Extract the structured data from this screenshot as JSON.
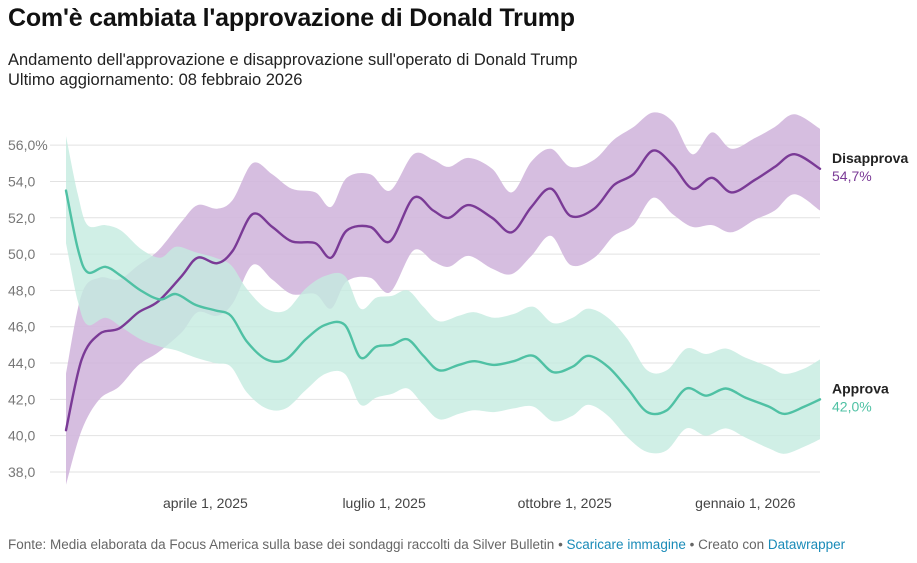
{
  "header": {
    "title": "Com'è cambiata l'approvazione di Donald Trump",
    "subtitle": "Andamento dell'approvazione e disapprovazione sull'operato di Donald Trump",
    "updated": "Ultimo aggiornamento: 08 febbraio 2026"
  },
  "footer": {
    "source": "Fonte: Media elaborata da Focus America sulla base dei sondaggi raccolti da Silver Bulletin",
    "sep1": " • ",
    "download": "Scaricare immagine",
    "sep2": " • Creato con ",
    "tool": "Datawrapper"
  },
  "colors": {
    "disapprove": "#7a3a96",
    "disapprove_band": "#d2b7dd",
    "approve": "#4fc1a4",
    "approve_band": "#c4ebe0",
    "grid": "#e2e2e2",
    "link": "#1a8bb8"
  },
  "chart_data": {
    "type": "line",
    "title": "Com'è cambiata l'approvazione di Donald Trump",
    "x_axis": {
      "type": "date",
      "range": [
        "2025-01-20",
        "2026-02-08"
      ],
      "ticks": [
        {
          "date": "2025-04-01",
          "label": "aprile 1, 2025"
        },
        {
          "date": "2025-07-01",
          "label": "luglio 1, 2025"
        },
        {
          "date": "2025-10-01",
          "label": "ottobre 1, 2025"
        },
        {
          "date": "2026-01-01",
          "label": "gennaio 1, 2026"
        }
      ]
    },
    "y_axis": {
      "range": [
        38,
        57
      ],
      "ticks": [
        {
          "value": 38,
          "label": "38,0"
        },
        {
          "value": 40,
          "label": "40,0"
        },
        {
          "value": 42,
          "label": "42,0"
        },
        {
          "value": 44,
          "label": "44,0"
        },
        {
          "value": 46,
          "label": "46,0"
        },
        {
          "value": 48,
          "label": "48,0"
        },
        {
          "value": 50,
          "label": "50,0"
        },
        {
          "value": 52,
          "label": "52,0"
        },
        {
          "value": 54,
          "label": "54,0"
        },
        {
          "value": 56,
          "label": "56,0%"
        }
      ]
    },
    "grid": true,
    "series": [
      {
        "name": "Disapprova",
        "end_label": "54,7%",
        "points": [
          {
            "date": "2025-01-20",
            "value": 40.3,
            "low": 37.3,
            "high": 43.4
          },
          {
            "date": "2025-01-28",
            "value": 44.2,
            "low": 40.3,
            "high": 47.8
          },
          {
            "date": "2025-02-06",
            "value": 45.6,
            "low": 42.0,
            "high": 48.7
          },
          {
            "date": "2025-02-16",
            "value": 45.9,
            "low": 42.7,
            "high": 48.6
          },
          {
            "date": "2025-02-26",
            "value": 46.8,
            "low": 43.9,
            "high": 49.4
          },
          {
            "date": "2025-03-08",
            "value": 47.4,
            "low": 44.6,
            "high": 50.2
          },
          {
            "date": "2025-03-20",
            "value": 48.8,
            "low": 45.7,
            "high": 51.8
          },
          {
            "date": "2025-03-28",
            "value": 49.8,
            "low": 46.8,
            "high": 52.7
          },
          {
            "date": "2025-04-07",
            "value": 49.5,
            "low": 46.6,
            "high": 52.5
          },
          {
            "date": "2025-04-15",
            "value": 50.2,
            "low": 47.3,
            "high": 53.0
          },
          {
            "date": "2025-04-25",
            "value": 52.2,
            "low": 49.4,
            "high": 55.0
          },
          {
            "date": "2025-05-05",
            "value": 51.5,
            "low": 48.6,
            "high": 54.4
          },
          {
            "date": "2025-05-15",
            "value": 50.7,
            "low": 47.8,
            "high": 53.6
          },
          {
            "date": "2025-05-27",
            "value": 50.6,
            "low": 47.8,
            "high": 53.4
          },
          {
            "date": "2025-06-04",
            "value": 49.8,
            "low": 47.0,
            "high": 52.6
          },
          {
            "date": "2025-06-12",
            "value": 51.3,
            "low": 48.5,
            "high": 54.2
          },
          {
            "date": "2025-06-24",
            "value": 51.5,
            "low": 48.7,
            "high": 54.4
          },
          {
            "date": "2025-07-04",
            "value": 50.7,
            "low": 47.9,
            "high": 53.5
          },
          {
            "date": "2025-07-16",
            "value": 53.1,
            "low": 50.2,
            "high": 55.5
          },
          {
            "date": "2025-07-26",
            "value": 52.4,
            "low": 49.6,
            "high": 55.2
          },
          {
            "date": "2025-08-03",
            "value": 52.0,
            "low": 49.3,
            "high": 54.8
          },
          {
            "date": "2025-08-13",
            "value": 52.7,
            "low": 49.9,
            "high": 55.3
          },
          {
            "date": "2025-08-25",
            "value": 52.0,
            "low": 49.2,
            "high": 54.7
          },
          {
            "date": "2025-09-04",
            "value": 51.2,
            "low": 48.9,
            "high": 53.4
          },
          {
            "date": "2025-09-14",
            "value": 52.6,
            "low": 49.9,
            "high": 55.1
          },
          {
            "date": "2025-09-24",
            "value": 53.6,
            "low": 51.0,
            "high": 55.8
          },
          {
            "date": "2025-10-04",
            "value": 52.1,
            "low": 49.4,
            "high": 54.8
          },
          {
            "date": "2025-10-16",
            "value": 52.5,
            "low": 49.8,
            "high": 55.2
          },
          {
            "date": "2025-10-26",
            "value": 53.8,
            "low": 51.0,
            "high": 56.3
          },
          {
            "date": "2025-11-05",
            "value": 54.4,
            "low": 51.6,
            "high": 57.0
          },
          {
            "date": "2025-11-15",
            "value": 55.7,
            "low": 53.1,
            "high": 57.8
          },
          {
            "date": "2025-11-25",
            "value": 54.9,
            "low": 52.2,
            "high": 57.3
          },
          {
            "date": "2025-12-05",
            "value": 53.6,
            "low": 51.5,
            "high": 55.5
          },
          {
            "date": "2025-12-15",
            "value": 54.2,
            "low": 51.6,
            "high": 56.7
          },
          {
            "date": "2025-12-25",
            "value": 53.4,
            "low": 51.2,
            "high": 55.8
          },
          {
            "date": "2026-01-06",
            "value": 54.1,
            "low": 51.9,
            "high": 56.4
          },
          {
            "date": "2026-01-16",
            "value": 54.8,
            "low": 52.4,
            "high": 57.0
          },
          {
            "date": "2026-01-26",
            "value": 55.5,
            "low": 53.3,
            "high": 57.7
          },
          {
            "date": "2026-02-08",
            "value": 54.7,
            "low": 52.4,
            "high": 56.9
          }
        ]
      },
      {
        "name": "Approva",
        "end_label": "42,0%",
        "points": [
          {
            "date": "2025-01-20",
            "value": 53.5,
            "low": 50.6,
            "high": 56.5
          },
          {
            "date": "2025-01-26",
            "value": 50.3,
            "low": 47.4,
            "high": 53.3
          },
          {
            "date": "2025-01-31",
            "value": 49.0,
            "low": 46.1,
            "high": 51.6
          },
          {
            "date": "2025-02-09",
            "value": 49.3,
            "low": 46.5,
            "high": 51.6
          },
          {
            "date": "2025-02-17",
            "value": 48.8,
            "low": 46.0,
            "high": 51.3
          },
          {
            "date": "2025-02-27",
            "value": 48.0,
            "low": 45.3,
            "high": 50.3
          },
          {
            "date": "2025-03-09",
            "value": 47.5,
            "low": 44.9,
            "high": 49.8
          },
          {
            "date": "2025-03-17",
            "value": 47.8,
            "low": 44.7,
            "high": 50.4
          },
          {
            "date": "2025-03-27",
            "value": 47.2,
            "low": 44.3,
            "high": 50.1
          },
          {
            "date": "2025-04-06",
            "value": 46.9,
            "low": 44.0,
            "high": 49.8
          },
          {
            "date": "2025-04-14",
            "value": 46.6,
            "low": 43.8,
            "high": 49.4
          },
          {
            "date": "2025-04-22",
            "value": 45.2,
            "low": 42.4,
            "high": 48.1
          },
          {
            "date": "2025-05-02",
            "value": 44.2,
            "low": 41.5,
            "high": 47.0
          },
          {
            "date": "2025-05-12",
            "value": 44.2,
            "low": 41.5,
            "high": 46.9
          },
          {
            "date": "2025-05-22",
            "value": 45.3,
            "low": 42.5,
            "high": 48.1
          },
          {
            "date": "2025-06-01",
            "value": 46.1,
            "low": 43.4,
            "high": 48.8
          },
          {
            "date": "2025-06-11",
            "value": 46.1,
            "low": 43.4,
            "high": 48.8
          },
          {
            "date": "2025-06-19",
            "value": 44.3,
            "low": 41.7,
            "high": 47.0
          },
          {
            "date": "2025-06-27",
            "value": 44.9,
            "low": 42.1,
            "high": 47.6
          },
          {
            "date": "2025-07-05",
            "value": 45.0,
            "low": 42.3,
            "high": 47.7
          },
          {
            "date": "2025-07-13",
            "value": 45.3,
            "low": 42.6,
            "high": 48.0
          },
          {
            "date": "2025-07-21",
            "value": 44.4,
            "low": 41.7,
            "high": 47.1
          },
          {
            "date": "2025-07-29",
            "value": 43.6,
            "low": 40.9,
            "high": 46.3
          },
          {
            "date": "2025-08-08",
            "value": 43.9,
            "low": 41.2,
            "high": 46.6
          },
          {
            "date": "2025-08-16",
            "value": 44.1,
            "low": 41.4,
            "high": 46.8
          },
          {
            "date": "2025-08-26",
            "value": 43.9,
            "low": 41.3,
            "high": 46.5
          },
          {
            "date": "2025-09-05",
            "value": 44.1,
            "low": 41.5,
            "high": 46.7
          },
          {
            "date": "2025-09-15",
            "value": 44.4,
            "low": 41.6,
            "high": 47.1
          },
          {
            "date": "2025-09-25",
            "value": 43.5,
            "low": 40.8,
            "high": 46.2
          },
          {
            "date": "2025-10-05",
            "value": 43.8,
            "low": 41.1,
            "high": 46.5
          },
          {
            "date": "2025-10-13",
            "value": 44.4,
            "low": 41.7,
            "high": 47.0
          },
          {
            "date": "2025-10-23",
            "value": 43.8,
            "low": 41.1,
            "high": 46.5
          },
          {
            "date": "2025-11-02",
            "value": 42.6,
            "low": 39.9,
            "high": 45.3
          },
          {
            "date": "2025-11-12",
            "value": 41.3,
            "low": 39.1,
            "high": 43.6
          },
          {
            "date": "2025-11-22",
            "value": 41.4,
            "low": 39.2,
            "high": 43.6
          },
          {
            "date": "2025-12-02",
            "value": 42.6,
            "low": 40.4,
            "high": 44.8
          },
          {
            "date": "2025-12-12",
            "value": 42.2,
            "low": 40.0,
            "high": 44.5
          },
          {
            "date": "2025-12-22",
            "value": 42.6,
            "low": 40.4,
            "high": 44.8
          },
          {
            "date": "2026-01-01",
            "value": 42.1,
            "low": 39.9,
            "high": 44.3
          },
          {
            "date": "2026-01-13",
            "value": 41.6,
            "low": 39.3,
            "high": 43.8
          },
          {
            "date": "2026-01-21",
            "value": 41.2,
            "low": 39.0,
            "high": 43.4
          },
          {
            "date": "2026-01-31",
            "value": 41.6,
            "low": 39.4,
            "high": 43.7
          },
          {
            "date": "2026-02-08",
            "value": 42.0,
            "low": 39.8,
            "high": 44.2
          }
        ]
      }
    ]
  }
}
